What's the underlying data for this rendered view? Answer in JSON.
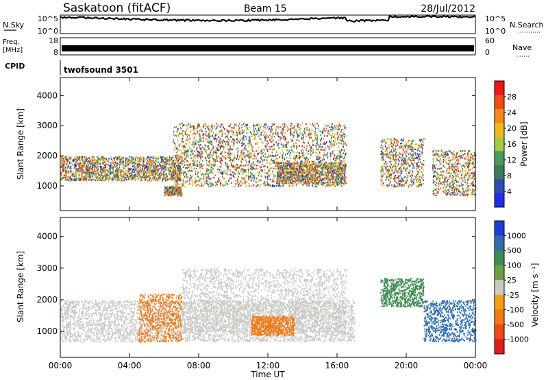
{
  "header": {
    "station": "Saskatoon (fitACF)",
    "beam": "Beam 15",
    "date": "28/Jul/2012"
  },
  "strip": {
    "nsky_label": "N.Sky",
    "nsky_ticks": [
      "10^5",
      "10^0"
    ],
    "nsearch_label": "N.Search",
    "nsearch_ticks": [
      "10^5",
      "10^0"
    ],
    "freq_label_line1": "Freq.",
    "freq_label_line2": "[MHz]",
    "freq_ticks": [
      "18",
      "8"
    ],
    "nave_label": "Nave",
    "nave_ticks": [
      "60",
      "0"
    ],
    "cpid_label": "CPID",
    "cpid_value": "twofsound 3501"
  },
  "chart_data": [
    {
      "type": "heatmap",
      "title": "",
      "ylabel": "Slant Range [km]",
      "xlabel": "",
      "x_range_hours": [
        0,
        24
      ],
      "ylim": [
        180,
        4600
      ],
      "y_ticks": [
        1000,
        2000,
        3000,
        4000
      ],
      "y_tick_labels": [
        "1000",
        "2000",
        "3000",
        "4000"
      ],
      "colorbar": {
        "label": "Power [dB]",
        "ticks": [
          "28",
          "24",
          "20",
          "16",
          "12",
          "8",
          "4"
        ],
        "colors": [
          "#e8181b",
          "#f04a1a",
          "#f28a1c",
          "#f0b91e",
          "#a6c843",
          "#4a9d58",
          "#3c7b57",
          "#2c4fae",
          "#1f2fe6"
        ]
      },
      "features": [
        {
          "name": "morning band",
          "t": [
            0,
            7
          ],
          "range_km": [
            1200,
            2000
          ],
          "power_db": [
            4,
            24
          ]
        },
        {
          "name": "near-range echo",
          "t": [
            6,
            7
          ],
          "range_km": [
            700,
            1000
          ],
          "power_db": [
            24,
            30
          ]
        },
        {
          "name": "midday arc",
          "t": [
            6.5,
            16.5
          ],
          "range_km": [
            1000,
            3100
          ],
          "power_db": [
            4,
            20
          ]
        },
        {
          "name": "afternoon band",
          "t": [
            12.5,
            16.5
          ],
          "range_km": [
            1100,
            1800
          ],
          "power_db": [
            12,
            28
          ]
        },
        {
          "name": "evening band",
          "t": [
            18.5,
            21
          ],
          "range_km": [
            1000,
            2600
          ],
          "power_db": [
            4,
            24
          ]
        },
        {
          "name": "late band",
          "t": [
            21.5,
            24
          ],
          "range_km": [
            700,
            2200
          ],
          "power_db": [
            8,
            30
          ]
        }
      ]
    },
    {
      "type": "heatmap",
      "title": "",
      "ylabel": "Slant Range [km]",
      "xlabel": "Time UT",
      "x_range_hours": [
        0,
        24
      ],
      "x_tick_labels": [
        "00:00",
        "04:00",
        "08:00",
        "12:00",
        "16:00",
        "20:00",
        "00:00"
      ],
      "ylim": [
        180,
        4600
      ],
      "y_ticks": [
        1000,
        2000,
        3000,
        4000
      ],
      "y_tick_labels": [
        "1000",
        "2000",
        "3000",
        "4000"
      ],
      "colorbar": {
        "label": "Velocity [m s⁻¹]",
        "ticks": [
          "1000",
          "500",
          "100",
          "25",
          "-25",
          "-100",
          "-500",
          "-1000"
        ],
        "colors": [
          "#1e3ed6",
          "#2f6cb0",
          "#3f8b54",
          "#6fa043",
          "#c9c9c5",
          "#f2a010",
          "#f27a14",
          "#ee4a18",
          "#e01c1c"
        ]
      },
      "features": [
        {
          "name": "ground scatter",
          "t": [
            0,
            17
          ],
          "range_km": [
            700,
            2000
          ],
          "velocity_ms": [
            -25,
            25
          ]
        },
        {
          "name": "midday arc",
          "t": [
            7,
            16.5
          ],
          "range_km": [
            1000,
            3000
          ],
          "velocity_ms": [
            -25,
            25
          ]
        },
        {
          "name": "morning flow",
          "t": [
            4.5,
            7
          ],
          "range_km": [
            700,
            2200
          ],
          "velocity_ms": [
            -500,
            -100
          ]
        },
        {
          "name": "noon flow",
          "t": [
            11,
            13.5
          ],
          "range_km": [
            900,
            1500
          ],
          "velocity_ms": [
            -500,
            -100
          ]
        },
        {
          "name": "evening arc",
          "t": [
            18.5,
            21
          ],
          "range_km": [
            1800,
            2700
          ],
          "velocity_ms": [
            100,
            500
          ]
        },
        {
          "name": "late positive",
          "t": [
            21,
            24
          ],
          "range_km": [
            700,
            2000
          ],
          "velocity_ms": [
            500,
            1000
          ]
        }
      ]
    }
  ]
}
